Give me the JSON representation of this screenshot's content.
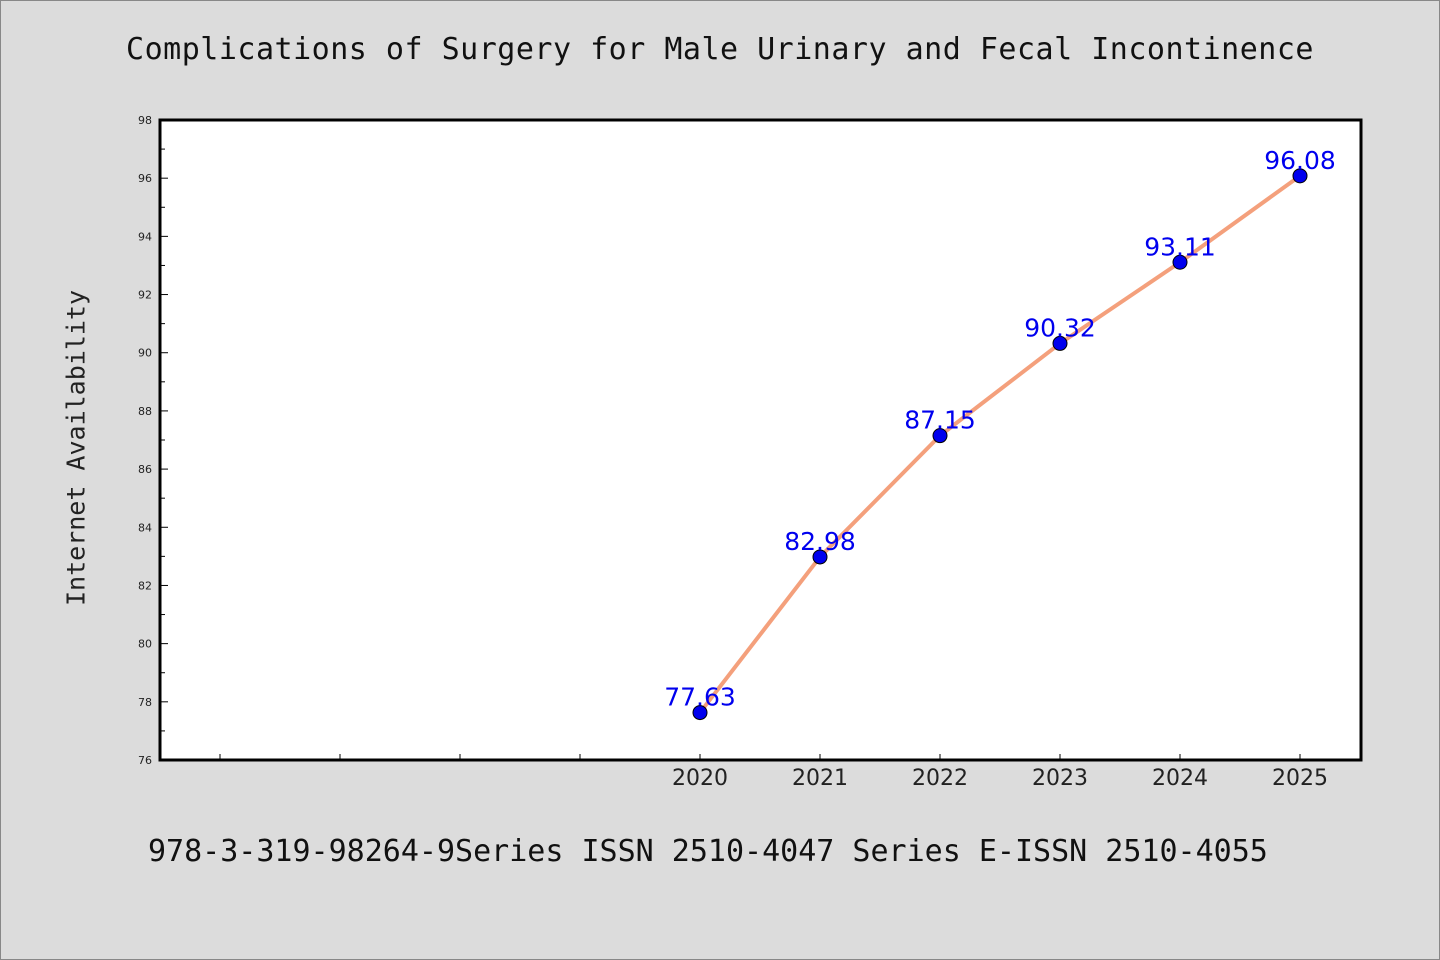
{
  "chart_data": {
    "type": "line",
    "title": "Complications of Surgery for Male Urinary and Fecal Incontinence",
    "xlabel": "",
    "ylabel": "Internet Availability",
    "x": [
      "2020",
      "2021",
      "2022",
      "2023",
      "2024",
      "2025"
    ],
    "series": [
      {
        "values": [
          77.63,
          82.98,
          87.15,
          90.32,
          93.11,
          96.08
        ],
        "labels": [
          "77.63",
          "82.98",
          "87.15",
          "90.32",
          "93.11",
          "96.08"
        ]
      }
    ],
    "yticks": [
      "76",
      "78",
      "80",
      "82",
      "84",
      "86",
      "88",
      "90",
      "92",
      "94",
      "96",
      "98"
    ],
    "ylim": [
      76,
      98
    ],
    "grid": false,
    "legend": "none",
    "colors": {
      "line": "#f4a07c",
      "marker": "#0000ee",
      "data_label": "#0000ee",
      "background": "#dcdcdc",
      "plot_background": "#ffffff"
    }
  },
  "footer": "978-3-319-98264-9Series ISSN 2510-4047 Series E-ISSN 2510-4055"
}
